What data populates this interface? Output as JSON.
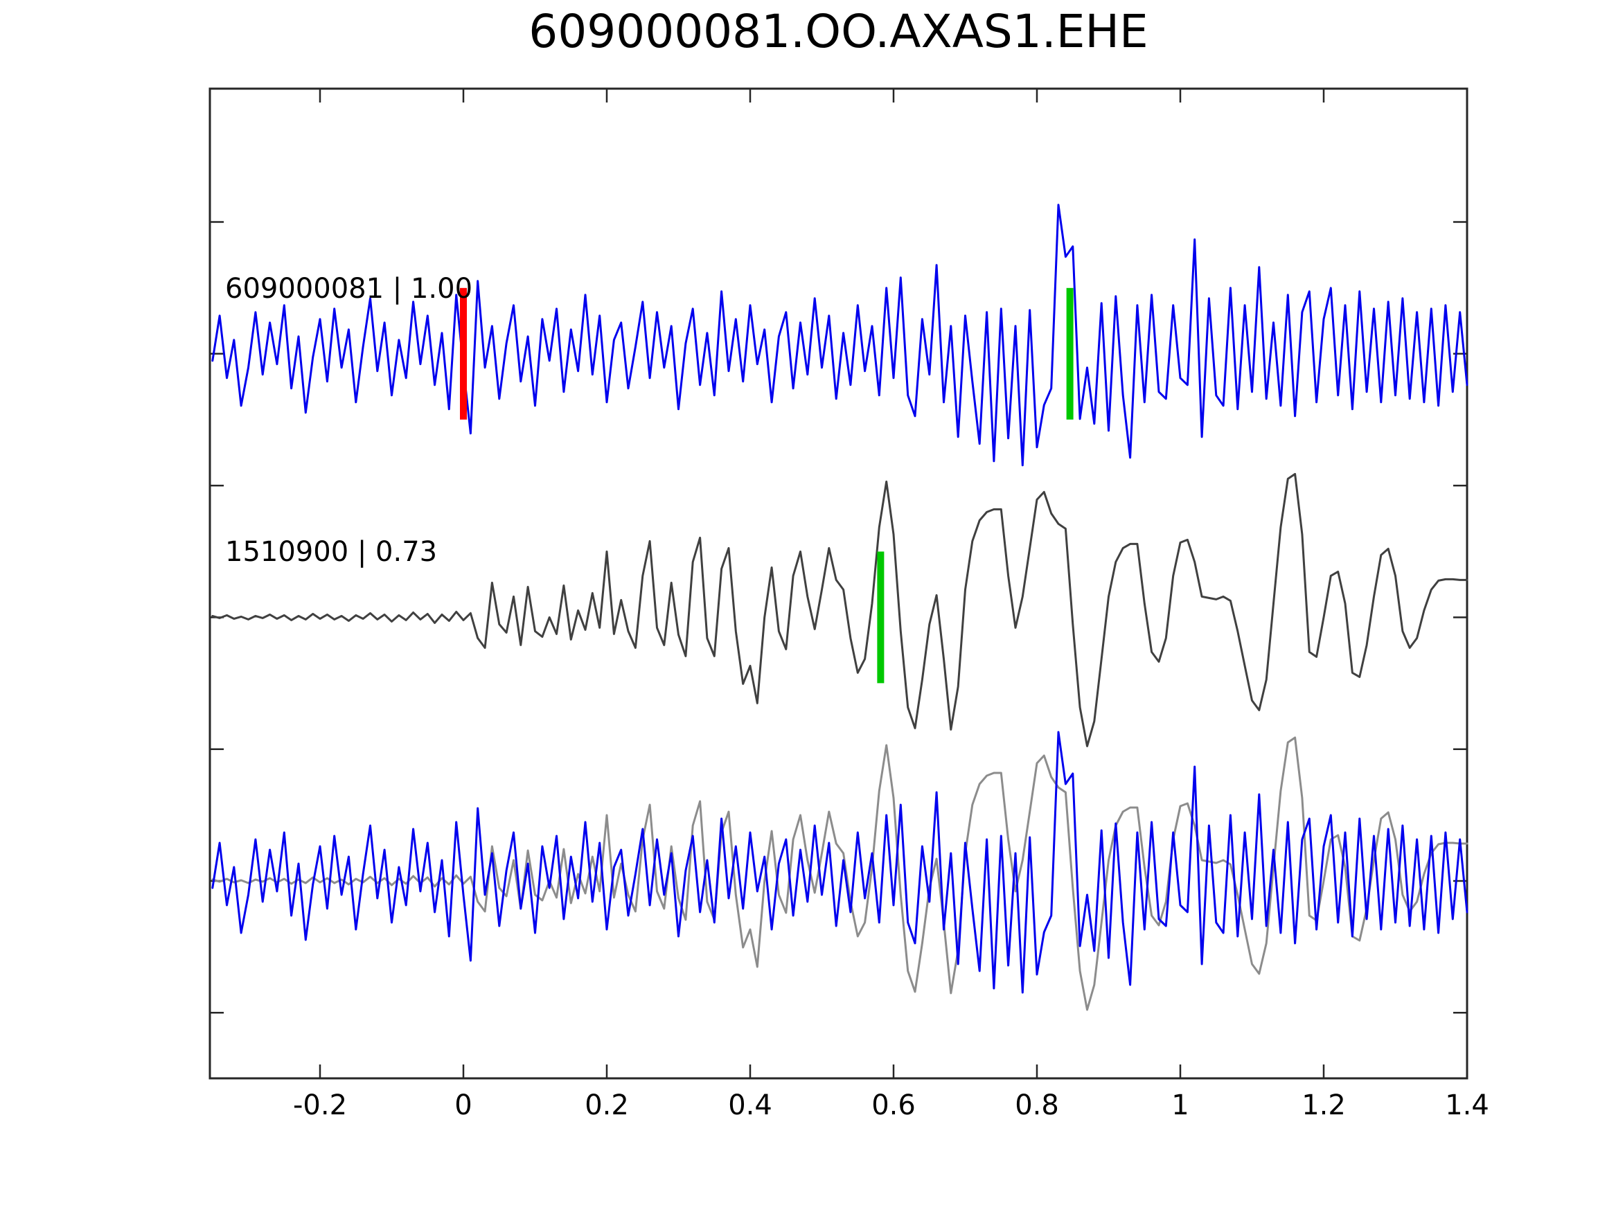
{
  "chart_data": {
    "type": "line",
    "title": "609000081.OO.AXAS1.EHE",
    "xlabel": "",
    "ylabel": "",
    "grid": false,
    "legend": null,
    "x_axis": {
      "t0": -0.35,
      "dt": 0.01,
      "range": [
        -0.354,
        1.4
      ],
      "ticks": [
        -0.2,
        0,
        0.2,
        0.4,
        0.6,
        0.8,
        1,
        1.2,
        1.4
      ],
      "tick_labels": [
        "-0.2",
        "0",
        "0.2",
        "0.4",
        "0.6",
        "0.8",
        "1",
        "1.2",
        "1.4"
      ]
    },
    "trace_labels": [
      {
        "text": "609000081 | 1.00"
      },
      {
        "text": "1510900 | 0.73"
      }
    ],
    "colors": {
      "detection": "#0000ee",
      "template": "#404040",
      "template_overlay": "#8c8c8c",
      "pick_red": "#ff0000",
      "pick_green": "#00c800",
      "axis": "#262626"
    },
    "series": [
      {
        "name": "overlay-template-waveform",
        "row": 2,
        "color": "#8c8c8c",
        "width": 3,
        "source": 1
      },
      {
        "name": "template-waveform",
        "row": 1,
        "color": "#404040",
        "width": 3,
        "values": [
          2,
          -1,
          3,
          -2,
          1,
          -3,
          2,
          -1,
          4,
          -2,
          3,
          -4,
          2,
          -3,
          5,
          -2,
          4,
          -3,
          2,
          -5,
          3,
          -2,
          6,
          -3,
          4,
          -6,
          3,
          -4,
          7,
          -3,
          5,
          -8,
          4,
          -5,
          8,
          -4,
          6,
          -30,
          -44,
          50,
          -10,
          -22,
          30,
          -40,
          44,
          -20,
          -28,
          0,
          -24,
          46,
          -32,
          10,
          -18,
          35,
          -15,
          95,
          -24,
          25,
          -20,
          -44,
          60,
          110,
          -15,
          -40,
          50,
          -25,
          -56,
          80,
          115,
          -30,
          -56,
          70,
          100,
          -20,
          -96,
          -70,
          -124,
          0,
          72,
          -20,
          -46,
          60,
          95,
          30,
          -17,
          40,
          100,
          54,
          40,
          -30,
          -80,
          -60,
          20,
          130,
          196,
          120,
          -20,
          -130,
          -160,
          -90,
          -10,
          32,
          -60,
          -162,
          -100,
          40,
          110,
          140,
          152,
          156,
          156,
          60,
          -15,
          30,
          100,
          170,
          181,
          150,
          135,
          128,
          -10,
          -130,
          -186,
          -150,
          -60,
          30,
          80,
          100,
          106,
          106,
          20,
          -50,
          -64,
          -30,
          60,
          108,
          112,
          80,
          30,
          28,
          26,
          30,
          24,
          -20,
          -70,
          -120,
          -134,
          -90,
          20,
          130,
          200,
          207,
          120,
          -50,
          -57,
          0,
          60,
          66,
          20,
          -80,
          -86,
          -40,
          30,
          90,
          99,
          60,
          -20,
          -44,
          -30,
          10,
          40,
          53,
          55,
          55,
          54,
          54
        ]
      },
      {
        "name": "overlay-detection-waveform",
        "row": 2,
        "color": "#0000ee",
        "width": 3,
        "source": 3
      },
      {
        "name": "detection-waveform",
        "row": 0,
        "color": "#0000ee",
        "width": 3,
        "values": [
          -10,
          55,
          -35,
          20,
          -75,
          -20,
          60,
          -30,
          45,
          -15,
          70,
          -50,
          25,
          -85,
          -5,
          50,
          -40,
          65,
          -20,
          35,
          -70,
          10,
          80,
          -25,
          45,
          -60,
          20,
          -35,
          75,
          -15,
          55,
          -45,
          30,
          -80,
          85,
          -20,
          -115,
          105,
          -20,
          40,
          -65,
          15,
          70,
          -40,
          25,
          -75,
          50,
          -10,
          65,
          -55,
          35,
          -25,
          85,
          -30,
          55,
          -70,
          20,
          45,
          -50,
          10,
          75,
          -35,
          60,
          -20,
          40,
          -80,
          15,
          65,
          -45,
          30,
          -60,
          90,
          -25,
          50,
          -40,
          70,
          -15,
          35,
          -70,
          25,
          60,
          -50,
          45,
          -30,
          80,
          -20,
          55,
          -65,
          30,
          -45,
          70,
          -25,
          40,
          -60,
          95,
          -35,
          110,
          -60,
          -90,
          50,
          -30,
          128,
          -70,
          40,
          -120,
          55,
          -40,
          -130,
          60,
          -155,
          65,
          -122,
          40,
          -161,
          63,
          -135,
          -74,
          -50,
          215,
          140,
          155,
          -94,
          -20,
          -101,
          73,
          -111,
          83,
          -60,
          -150,
          70,
          -70,
          85,
          -55,
          -65,
          70,
          -35,
          -45,
          165,
          -120,
          80,
          -60,
          -75,
          95,
          -80,
          70,
          -55,
          125,
          -65,
          45,
          -75,
          85,
          -90,
          60,
          90,
          -70,
          50,
          95,
          -60,
          70,
          -80,
          90,
          -55,
          65,
          -70,
          75,
          -60,
          80,
          -65,
          60,
          -70,
          65,
          -75,
          70,
          -55,
          60,
          -45
        ]
      }
    ],
    "markers": [
      {
        "name": "detection-origin-marker-red",
        "row": 0,
        "t": 0.0,
        "color": "#ff0000"
      },
      {
        "name": "detection-pick-marker-green",
        "row": 0,
        "t": 0.846,
        "color": "#00c800"
      },
      {
        "name": "template-pick-marker-green",
        "row": 1,
        "t": 0.582,
        "color": "#00c800"
      }
    ]
  }
}
